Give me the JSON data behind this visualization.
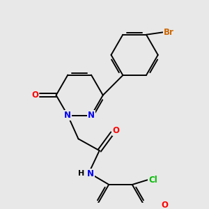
{
  "background_color": "#e8e8e8",
  "bond_color": "#000000",
  "atom_colors": {
    "N": "#0000ee",
    "O": "#ff0000",
    "Cl": "#00bb00",
    "Br": "#cc6600"
  },
  "figsize": [
    3.0,
    3.0
  ],
  "dpi": 100,
  "bond_lw": 1.4,
  "font_size": 8.5
}
